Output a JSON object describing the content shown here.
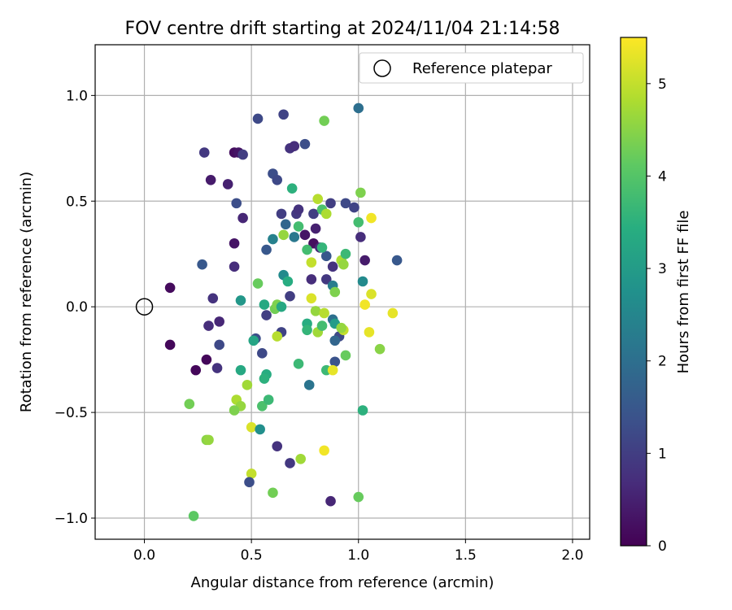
{
  "chart_data": {
    "type": "scatter",
    "title": "FOV centre drift starting at 2024/11/04 21:14:58",
    "xlabel": "Angular distance from reference (arcmin)",
    "ylabel": "Rotation from reference (arcmin)",
    "xlim": [
      -0.23,
      2.08
    ],
    "ylim": [
      -1.1,
      1.24
    ],
    "xticks": [
      0.0,
      0.5,
      1.0,
      1.5,
      2.0
    ],
    "xtick_labels": [
      "0.0",
      "0.5",
      "1.0",
      "1.5",
      "2.0"
    ],
    "yticks": [
      -1.0,
      -0.5,
      0.0,
      0.5,
      1.0
    ],
    "ytick_labels": [
      "−1.0",
      "−0.5",
      "0.0",
      "0.5",
      "1.0"
    ],
    "grid": true,
    "legend": {
      "placement": "top-right",
      "entries": [
        "Reference platepar"
      ]
    },
    "reference_point": {
      "x": 0.0,
      "y": 0.0
    },
    "colorbar": {
      "label": "Hours from first FF file",
      "colormap": "viridis",
      "range": [
        0,
        5.5
      ],
      "ticks": [
        0,
        1,
        2,
        3,
        4,
        5
      ],
      "tick_labels": [
        "0",
        "1",
        "2",
        "3",
        "4",
        "5"
      ]
    },
    "points": [
      {
        "x": 0.12,
        "y": 0.09,
        "t": 0.15
      },
      {
        "x": 0.12,
        "y": -0.18,
        "t": 0.1
      },
      {
        "x": 0.24,
        "y": -0.3,
        "t": 0.1
      },
      {
        "x": 0.29,
        "y": -0.25,
        "t": 0.1
      },
      {
        "x": 0.42,
        "y": 0.73,
        "t": 0.2
      },
      {
        "x": 0.44,
        "y": 0.73,
        "t": 0.3
      },
      {
        "x": 0.31,
        "y": 0.6,
        "t": 0.4
      },
      {
        "x": 0.39,
        "y": 0.58,
        "t": 0.5
      },
      {
        "x": 0.42,
        "y": 0.3,
        "t": 0.3
      },
      {
        "x": 0.46,
        "y": 0.42,
        "t": 0.6
      },
      {
        "x": 0.28,
        "y": 0.73,
        "t": 0.9
      },
      {
        "x": 0.46,
        "y": 0.72,
        "t": 1.0
      },
      {
        "x": 0.53,
        "y": 0.89,
        "t": 1.2
      },
      {
        "x": 0.65,
        "y": 0.91,
        "t": 1.1
      },
      {
        "x": 0.42,
        "y": 0.19,
        "t": 0.7
      },
      {
        "x": 0.32,
        "y": 0.04,
        "t": 0.8
      },
      {
        "x": 0.3,
        "y": -0.09,
        "t": 0.7
      },
      {
        "x": 0.35,
        "y": -0.07,
        "t": 0.6
      },
      {
        "x": 0.34,
        "y": -0.29,
        "t": 0.8
      },
      {
        "x": 0.35,
        "y": -0.18,
        "t": 1.2
      },
      {
        "x": 0.27,
        "y": 0.2,
        "t": 1.5
      },
      {
        "x": 0.43,
        "y": 0.49,
        "t": 1.3
      },
      {
        "x": 0.45,
        "y": 0.03,
        "t": 2.9
      },
      {
        "x": 0.6,
        "y": 0.63,
        "t": 1.3
      },
      {
        "x": 0.62,
        "y": 0.6,
        "t": 1.2
      },
      {
        "x": 0.68,
        "y": 0.75,
        "t": 0.8
      },
      {
        "x": 0.7,
        "y": 0.76,
        "t": 0.7
      },
      {
        "x": 0.75,
        "y": 0.77,
        "t": 1.3
      },
      {
        "x": 0.64,
        "y": 0.44,
        "t": 1.0
      },
      {
        "x": 0.71,
        "y": 0.44,
        "t": 0.9
      },
      {
        "x": 0.72,
        "y": 0.46,
        "t": 0.8
      },
      {
        "x": 0.79,
        "y": 0.44,
        "t": 1.0
      },
      {
        "x": 0.87,
        "y": 0.49,
        "t": 1.0
      },
      {
        "x": 0.94,
        "y": 0.49,
        "t": 1.2
      },
      {
        "x": 0.98,
        "y": 0.47,
        "t": 1.1
      },
      {
        "x": 1.0,
        "y": 0.94,
        "t": 2.0
      },
      {
        "x": 0.66,
        "y": 0.39,
        "t": 1.8
      },
      {
        "x": 0.6,
        "y": 0.32,
        "t": 2.4
      },
      {
        "x": 0.65,
        "y": 0.34,
        "t": 4.6
      },
      {
        "x": 0.7,
        "y": 0.33,
        "t": 2.2
      },
      {
        "x": 0.75,
        "y": 0.34,
        "t": 0.3
      },
      {
        "x": 0.8,
        "y": 0.37,
        "t": 0.5
      },
      {
        "x": 0.57,
        "y": 0.27,
        "t": 1.5
      },
      {
        "x": 0.79,
        "y": 0.3,
        "t": 0.2
      },
      {
        "x": 0.82,
        "y": 0.28,
        "t": 0.6
      },
      {
        "x": 0.85,
        "y": 0.24,
        "t": 1.5
      },
      {
        "x": 0.88,
        "y": 0.19,
        "t": 0.8
      },
      {
        "x": 0.92,
        "y": 0.22,
        "t": 4.8
      },
      {
        "x": 1.01,
        "y": 0.33,
        "t": 0.7
      },
      {
        "x": 1.03,
        "y": 0.22,
        "t": 0.4
      },
      {
        "x": 1.18,
        "y": 0.22,
        "t": 1.5
      },
      {
        "x": 0.69,
        "y": 0.56,
        "t": 3.5
      },
      {
        "x": 0.81,
        "y": 0.51,
        "t": 4.9
      },
      {
        "x": 0.83,
        "y": 0.46,
        "t": 3.9
      },
      {
        "x": 0.85,
        "y": 0.44,
        "t": 4.8
      },
      {
        "x": 0.84,
        "y": 0.88,
        "t": 4.3
      },
      {
        "x": 1.01,
        "y": 0.54,
        "t": 4.4
      },
      {
        "x": 1.0,
        "y": 0.4,
        "t": 3.8
      },
      {
        "x": 1.06,
        "y": 0.42,
        "t": 5.4
      },
      {
        "x": 0.72,
        "y": 0.38,
        "t": 3.8
      },
      {
        "x": 0.76,
        "y": 0.27,
        "t": 3.8
      },
      {
        "x": 0.83,
        "y": 0.28,
        "t": 3.6
      },
      {
        "x": 0.94,
        "y": 0.25,
        "t": 3.7
      },
      {
        "x": 0.93,
        "y": 0.2,
        "t": 4.6
      },
      {
        "x": 0.78,
        "y": 0.21,
        "t": 5.0
      },
      {
        "x": 0.65,
        "y": 0.15,
        "t": 2.6
      },
      {
        "x": 0.67,
        "y": 0.12,
        "t": 3.4
      },
      {
        "x": 0.78,
        "y": 0.13,
        "t": 0.7
      },
      {
        "x": 0.85,
        "y": 0.13,
        "t": 0.9
      },
      {
        "x": 0.88,
        "y": 0.1,
        "t": 2.3
      },
      {
        "x": 0.89,
        "y": 0.07,
        "t": 4.4
      },
      {
        "x": 1.02,
        "y": 0.12,
        "t": 2.6
      },
      {
        "x": 0.68,
        "y": 0.05,
        "t": 1.0
      },
      {
        "x": 0.53,
        "y": 0.11,
        "t": 4.2
      },
      {
        "x": 0.56,
        "y": 0.01,
        "t": 3.3
      },
      {
        "x": 0.61,
        "y": -0.01,
        "t": 4.3
      },
      {
        "x": 0.62,
        "y": 0.01,
        "t": 4.4
      },
      {
        "x": 0.64,
        "y": 0.0,
        "t": 3.3
      },
      {
        "x": 0.57,
        "y": -0.04,
        "t": 1.0
      },
      {
        "x": 0.78,
        "y": 0.04,
        "t": 5.2
      },
      {
        "x": 0.8,
        "y": -0.02,
        "t": 4.6
      },
      {
        "x": 0.84,
        "y": -0.03,
        "t": 4.9
      },
      {
        "x": 0.88,
        "y": -0.06,
        "t": 2.0
      },
      {
        "x": 0.76,
        "y": -0.08,
        "t": 3.4
      },
      {
        "x": 0.76,
        "y": -0.11,
        "t": 3.6
      },
      {
        "x": 0.81,
        "y": -0.12,
        "t": 4.7
      },
      {
        "x": 0.83,
        "y": -0.09,
        "t": 3.8
      },
      {
        "x": 0.89,
        "y": -0.08,
        "t": 3.0
      },
      {
        "x": 0.91,
        "y": -0.14,
        "t": 1.2
      },
      {
        "x": 0.89,
        "y": -0.16,
        "t": 1.8
      },
      {
        "x": 0.93,
        "y": -0.11,
        "t": 5.0
      },
      {
        "x": 0.92,
        "y": -0.1,
        "t": 4.6
      },
      {
        "x": 1.03,
        "y": 0.01,
        "t": 5.4
      },
      {
        "x": 1.06,
        "y": 0.06,
        "t": 5.2
      },
      {
        "x": 1.16,
        "y": -0.03,
        "t": 5.3
      },
      {
        "x": 1.05,
        "y": -0.12,
        "t": 5.3
      },
      {
        "x": 0.52,
        "y": -0.15,
        "t": 1.3
      },
      {
        "x": 0.51,
        "y": -0.16,
        "t": 3.2
      },
      {
        "x": 0.64,
        "y": -0.12,
        "t": 1.1
      },
      {
        "x": 0.62,
        "y": -0.14,
        "t": 4.9
      },
      {
        "x": 0.55,
        "y": -0.22,
        "t": 1.2
      },
      {
        "x": 0.72,
        "y": -0.27,
        "t": 3.7
      },
      {
        "x": 0.89,
        "y": -0.26,
        "t": 1.4
      },
      {
        "x": 0.94,
        "y": -0.23,
        "t": 4.2
      },
      {
        "x": 1.1,
        "y": -0.2,
        "t": 4.5
      },
      {
        "x": 0.45,
        "y": -0.3,
        "t": 3.3
      },
      {
        "x": 0.57,
        "y": -0.32,
        "t": 3.4
      },
      {
        "x": 0.56,
        "y": -0.34,
        "t": 3.5
      },
      {
        "x": 0.77,
        "y": -0.37,
        "t": 2.1
      },
      {
        "x": 0.85,
        "y": -0.3,
        "t": 3.7
      },
      {
        "x": 0.88,
        "y": -0.3,
        "t": 5.3
      },
      {
        "x": 0.48,
        "y": -0.37,
        "t": 4.7
      },
      {
        "x": 0.43,
        "y": -0.44,
        "t": 4.8
      },
      {
        "x": 0.45,
        "y": -0.47,
        "t": 4.6
      },
      {
        "x": 0.42,
        "y": -0.49,
        "t": 4.4
      },
      {
        "x": 0.21,
        "y": -0.46,
        "t": 4.3
      },
      {
        "x": 0.55,
        "y": -0.47,
        "t": 3.9
      },
      {
        "x": 0.58,
        "y": -0.44,
        "t": 3.7
      },
      {
        "x": 0.5,
        "y": -0.57,
        "t": 5.2
      },
      {
        "x": 0.54,
        "y": -0.58,
        "t": 2.7
      },
      {
        "x": 1.02,
        "y": -0.49,
        "t": 3.5
      },
      {
        "x": 0.29,
        "y": -0.63,
        "t": 4.5
      },
      {
        "x": 0.3,
        "y": -0.63,
        "t": 4.6
      },
      {
        "x": 0.62,
        "y": -0.66,
        "t": 0.8
      },
      {
        "x": 0.73,
        "y": -0.72,
        "t": 4.7
      },
      {
        "x": 0.84,
        "y": -0.68,
        "t": 5.4
      },
      {
        "x": 0.68,
        "y": -0.74,
        "t": 0.9
      },
      {
        "x": 0.5,
        "y": -0.79,
        "t": 5.0
      },
      {
        "x": 0.49,
        "y": -0.83,
        "t": 1.3
      },
      {
        "x": 0.6,
        "y": -0.88,
        "t": 4.3
      },
      {
        "x": 0.87,
        "y": -0.92,
        "t": 0.6
      },
      {
        "x": 1.0,
        "y": -0.9,
        "t": 4.2
      },
      {
        "x": 0.23,
        "y": -0.99,
        "t": 4.1
      }
    ]
  }
}
